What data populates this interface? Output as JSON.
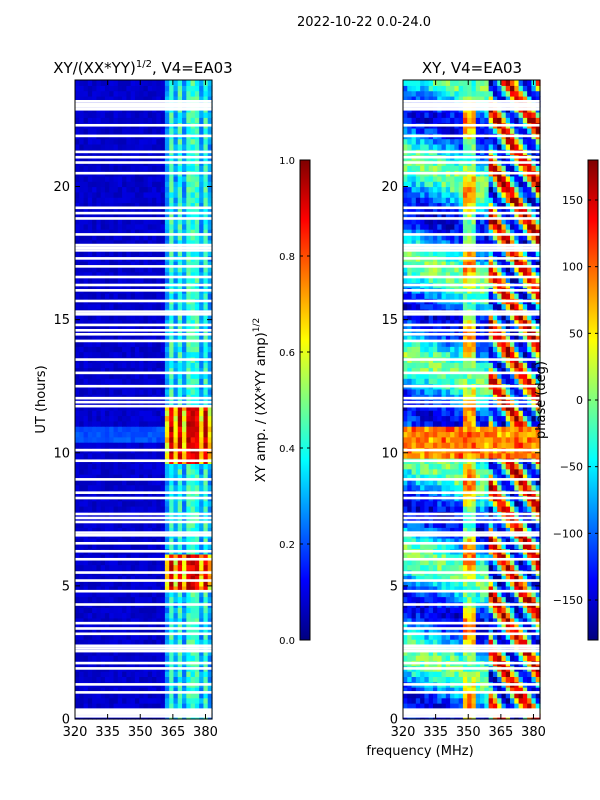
{
  "figure": {
    "suptitle": "2022-10-22 0.0-24.0",
    "shared_xlabel": "frequency (MHz)"
  },
  "chart_data": [
    {
      "type": "heatmap",
      "title_main": "XY/(XX*YY)",
      "title_sup": "1/2",
      "title_suffix": ", V4=EA03",
      "xlabel": "",
      "ylabel": "UT (hours)",
      "xlim": [
        320,
        383
      ],
      "ylim": [
        0,
        24
      ],
      "xticks": [
        320,
        335,
        350,
        365,
        380
      ],
      "yticks": [
        0,
        5,
        10,
        15,
        20
      ],
      "colormap": "jet",
      "colorbar": {
        "range": [
          0.0,
          1.0
        ],
        "ticks": [
          "0.0",
          "0.2",
          "0.4",
          "0.6",
          "0.8",
          "1.0"
        ],
        "label_main": "XY amp. / (XX*YY amp)",
        "label_sup": "1/2"
      },
      "features": {
        "channel_stripes_mhz": [
          365,
          369,
          373,
          376,
          380
        ],
        "stripe_range_mhz": [
          362,
          383
        ],
        "bright_windows_hours": [
          [
            4.9,
            6.3
          ],
          [
            9.6,
            11.8
          ]
        ],
        "background_level": 0.05
      }
    },
    {
      "type": "heatmap",
      "title_main": "XY, V4=EA03",
      "xlabel": "",
      "ylabel": "",
      "xlim": [
        320,
        383
      ],
      "ylim": [
        0,
        24
      ],
      "xticks": [
        320,
        335,
        350,
        365,
        380
      ],
      "yticks": [
        0,
        5,
        10,
        15,
        20
      ],
      "colormap": "jet",
      "colorbar": {
        "range": [
          -180,
          180
        ],
        "ticks": [
          "−150",
          "−100",
          "−50",
          "0",
          "50",
          "100",
          "150"
        ],
        "tick_values": [
          -150,
          -100,
          -50,
          0,
          50,
          100,
          150
        ],
        "label_main": "phase (deg)"
      }
    }
  ],
  "gaps_hours": [
    0.1,
    0.2,
    0.35,
    1.0,
    1.3,
    1.9,
    2.1,
    2.55,
    2.65,
    2.75,
    3.2,
    3.4,
    3.6,
    4.3,
    4.8,
    5.2,
    5.5,
    6.0,
    6.3,
    6.6,
    6.9,
    7.0,
    7.4,
    7.55,
    7.7,
    8.3,
    8.5,
    9.0,
    9.7,
    10.1,
    11.75,
    11.9,
    12.05,
    12.5,
    13.0,
    13.5,
    14.2,
    14.45,
    14.6,
    14.8,
    15.2,
    15.3,
    15.7,
    16.1,
    16.3,
    16.6,
    17.0,
    17.3,
    17.6,
    17.7,
    17.8,
    18.2,
    18.8,
    19.0,
    19.2,
    20.5,
    20.9,
    21.1,
    21.3,
    21.9,
    22.3,
    22.9,
    23.0,
    23.1,
    23.2
  ]
}
